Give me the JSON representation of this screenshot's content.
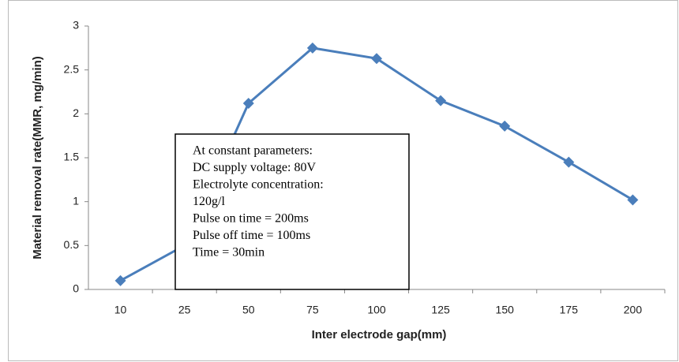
{
  "chart_data": {
    "type": "line",
    "x_label": "Inter electrode gap(mm)",
    "y_label": "Material removal rate(MMR, mg/min)",
    "categories": [
      "10",
      "25",
      "50",
      "75",
      "100",
      "125",
      "150",
      "175",
      "200"
    ],
    "series": [
      {
        "color": "#4a7ebb",
        "values": [
          0.1,
          0.5,
          2.12,
          2.75,
          2.63,
          2.15,
          1.86,
          1.45,
          1.02
        ]
      }
    ],
    "ylim": [
      0,
      3
    ],
    "yticks": [
      0,
      0.5,
      1,
      1.5,
      2,
      2.5,
      3
    ],
    "grid": false,
    "annotation": [
      "At constant parameters:",
      "DC supply voltage: 80V",
      "Electrolyte concentration:",
      "120g/l",
      "Pulse on time = 200ms",
      "Pulse off time = 100ms",
      "Time = 30min"
    ]
  }
}
